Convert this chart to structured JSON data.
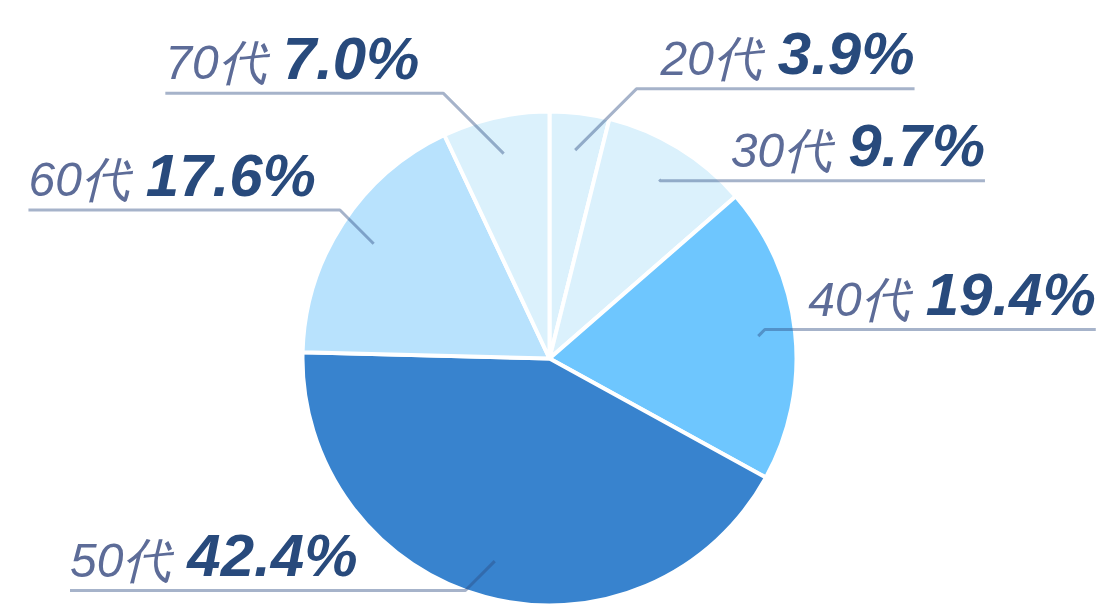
{
  "chart_data": {
    "type": "pie",
    "categories": [
      "20代",
      "30代",
      "40代",
      "50代",
      "60代",
      "70代"
    ],
    "values": [
      3.9,
      9.7,
      19.4,
      42.4,
      17.6,
      7.0
    ],
    "colors": [
      "#dbf1fc",
      "#dbf1fc",
      "#6ec6fe",
      "#3883ce",
      "#b8e2fd",
      "#dbf1fc"
    ],
    "value_labels": [
      "3.9%",
      "9.7%",
      "19.4%",
      "42.4%",
      "17.6%",
      "7.0%"
    ]
  }
}
